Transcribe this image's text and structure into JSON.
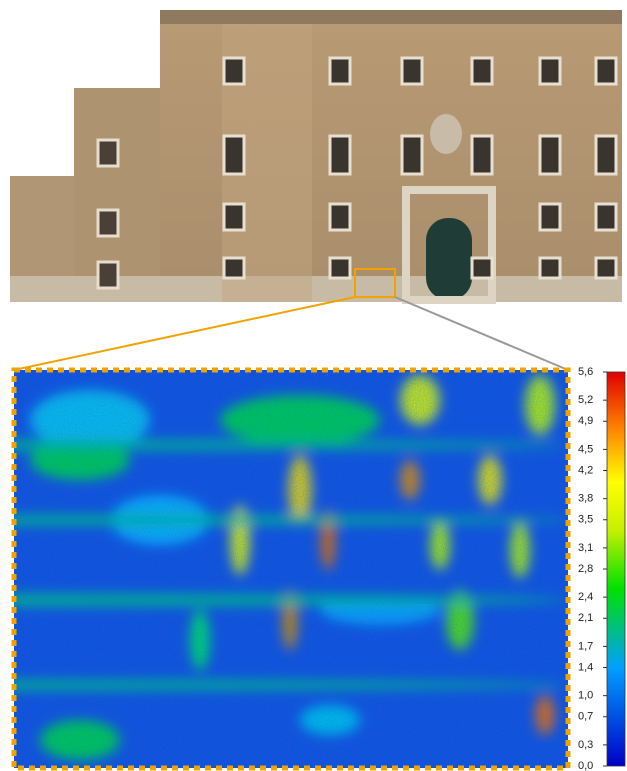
{
  "colorbar": {
    "range": [
      0,
      5.6
    ],
    "ticks": [
      {
        "value": 5.6,
        "label": "5,6"
      },
      {
        "value": 5.2,
        "label": "5,2"
      },
      {
        "value": 4.9,
        "label": "4,9"
      },
      {
        "value": 4.5,
        "label": "4,5"
      },
      {
        "value": 4.2,
        "label": "4,2"
      },
      {
        "value": 3.8,
        "label": "3,8"
      },
      {
        "value": 3.5,
        "label": "3,5"
      },
      {
        "value": 3.1,
        "label": "3,1"
      },
      {
        "value": 2.8,
        "label": "2,8"
      },
      {
        "value": 2.4,
        "label": "2,4"
      },
      {
        "value": 2.1,
        "label": "2,1"
      },
      {
        "value": 1.7,
        "label": "1,7"
      },
      {
        "value": 1.4,
        "label": "1,4"
      },
      {
        "value": 1.0,
        "label": "1,0"
      },
      {
        "value": 0.7,
        "label": "0,7"
      },
      {
        "value": 0.3,
        "label": "0,3"
      },
      {
        "value": 0,
        "label": "0,0"
      }
    ]
  }
}
